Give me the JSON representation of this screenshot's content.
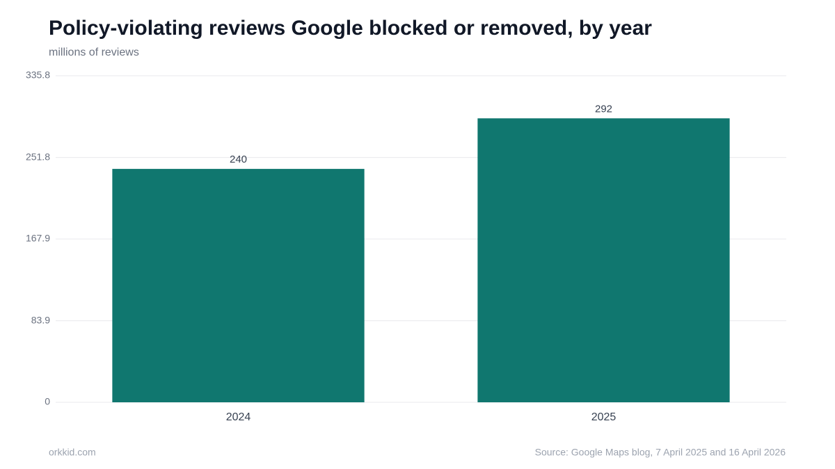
{
  "chart_data": {
    "type": "bar",
    "title": "Policy-violating reviews Google blocked or removed, by year",
    "subtitle": "millions of reviews",
    "categories": [
      "2024",
      "2025"
    ],
    "values": [
      240,
      292
    ],
    "color": "#10776f",
    "ylim": [
      0,
      335.8
    ],
    "yticks": [
      0,
      83.9,
      167.9,
      251.8,
      335.8
    ],
    "grid": true,
    "credit": "orkkid.com",
    "source": "Source: Google Maps blog, 7 April 2025 and 16 April 2026"
  }
}
